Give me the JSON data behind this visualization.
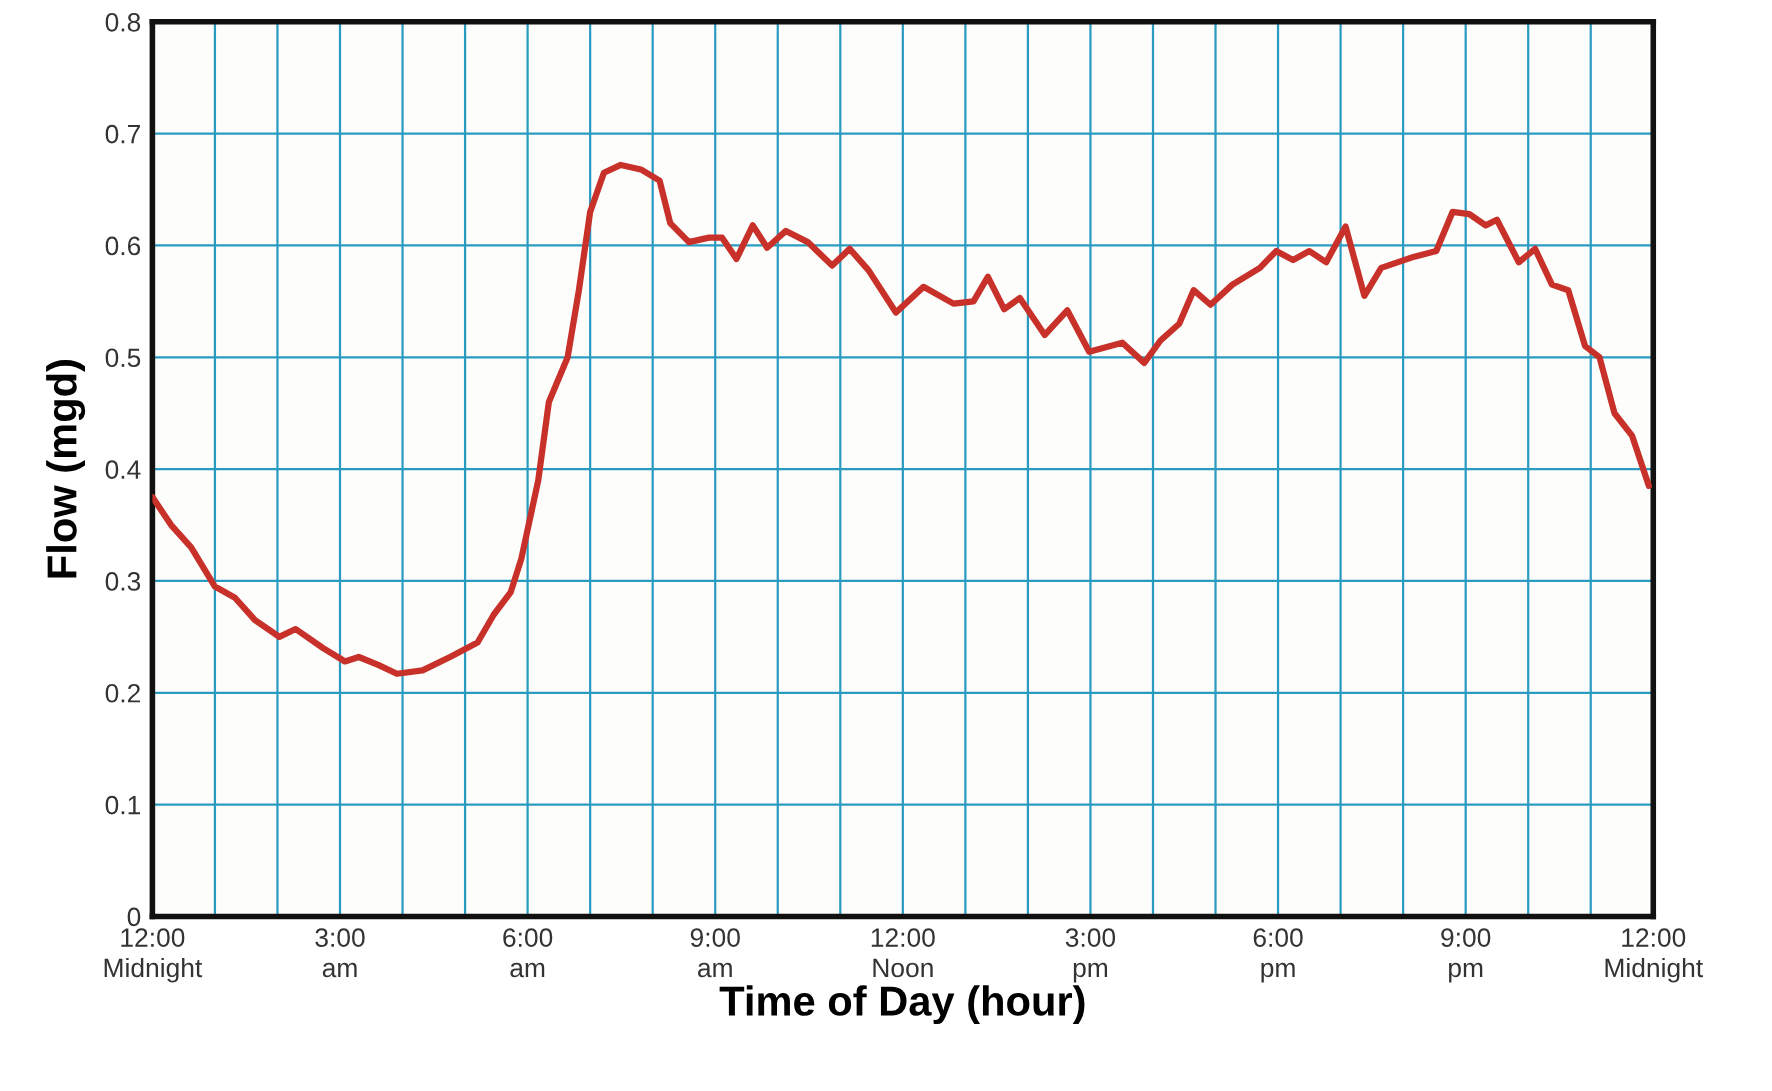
{
  "chart_data": {
    "type": "line",
    "xlabel": "Time of Day (hour)",
    "ylabel": "Flow (mgd)",
    "series": [
      {
        "color": "#c8302a",
        "x": [
          0,
          0.3,
          0.62,
          1.0,
          1.32,
          1.64,
          2.03,
          2.29,
          2.73,
          3.08,
          3.3,
          3.61,
          3.91,
          4.32,
          4.76,
          5.2,
          5.46,
          5.73,
          5.9,
          6.17,
          6.34,
          6.64,
          6.82,
          7.0,
          7.22,
          7.49,
          7.81,
          8.11,
          8.28,
          8.58,
          8.9,
          9.11,
          9.34,
          9.6,
          9.83,
          10.13,
          10.48,
          10.87,
          11.15,
          11.45,
          11.89,
          12.33,
          12.81,
          13.13,
          13.36,
          13.62,
          13.87,
          14.27,
          14.63,
          14.98,
          15.51,
          15.86,
          16.12,
          16.42,
          16.65,
          16.92,
          17.27,
          17.71,
          17.97,
          18.24,
          18.5,
          18.77,
          19.08,
          19.38,
          19.65,
          20.18,
          20.53,
          20.79,
          21.06,
          21.32,
          21.5,
          21.85,
          22.11,
          22.38,
          22.64,
          22.91,
          23.14,
          23.38,
          23.66,
          23.93
        ],
        "values": [
          0.375,
          0.35,
          0.33,
          0.295,
          0.285,
          0.265,
          0.25,
          0.257,
          0.24,
          0.228,
          0.232,
          0.225,
          0.217,
          0.22,
          0.232,
          0.245,
          0.27,
          0.29,
          0.32,
          0.39,
          0.46,
          0.5,
          0.56,
          0.63,
          0.665,
          0.672,
          0.668,
          0.658,
          0.62,
          0.603,
          0.607,
          0.607,
          0.588,
          0.618,
          0.598,
          0.613,
          0.603,
          0.582,
          0.597,
          0.578,
          0.54,
          0.563,
          0.548,
          0.55,
          0.572,
          0.543,
          0.553,
          0.52,
          0.542,
          0.505,
          0.513,
          0.495,
          0.515,
          0.53,
          0.56,
          0.547,
          0.565,
          0.58,
          0.595,
          0.587,
          0.595,
          0.585,
          0.617,
          0.555,
          0.58,
          0.59,
          0.595,
          0.63,
          0.628,
          0.618,
          0.623,
          0.585,
          0.597,
          0.565,
          0.56,
          0.51,
          0.5,
          0.45,
          0.43,
          0.385
        ]
      }
    ],
    "xlim": [
      0,
      24
    ],
    "xticks": [
      {
        "value": 0,
        "label": "12:00\nMidnight"
      },
      {
        "value": 1,
        "label": null
      },
      {
        "value": 2,
        "label": null
      },
      {
        "value": 3,
        "label": "3:00\nam"
      },
      {
        "value": 4,
        "label": null
      },
      {
        "value": 5,
        "label": null
      },
      {
        "value": 6,
        "label": "6:00\nam"
      },
      {
        "value": 7,
        "label": null
      },
      {
        "value": 8,
        "label": null
      },
      {
        "value": 9,
        "label": "9:00\nam"
      },
      {
        "value": 10,
        "label": null
      },
      {
        "value": 11,
        "label": null
      },
      {
        "value": 12,
        "label": "12:00\nNoon"
      },
      {
        "value": 13,
        "label": null
      },
      {
        "value": 14,
        "label": null
      },
      {
        "value": 15,
        "label": "3:00\npm"
      },
      {
        "value": 16,
        "label": null
      },
      {
        "value": 17,
        "label": null
      },
      {
        "value": 18,
        "label": "6:00\npm"
      },
      {
        "value": 19,
        "label": null
      },
      {
        "value": 20,
        "label": null
      },
      {
        "value": 21,
        "label": "9:00\npm"
      },
      {
        "value": 22,
        "label": null
      },
      {
        "value": 23,
        "label": null
      },
      {
        "value": 24,
        "label": "12:00\nMidnight"
      }
    ],
    "ylim": [
      0,
      0.8
    ],
    "yticks": [
      0,
      0.1,
      0.2,
      0.3,
      0.4,
      0.5,
      0.6,
      0.7,
      0.8
    ],
    "grid": true,
    "marker": "none",
    "line_style": "solid",
    "legend": false
  }
}
